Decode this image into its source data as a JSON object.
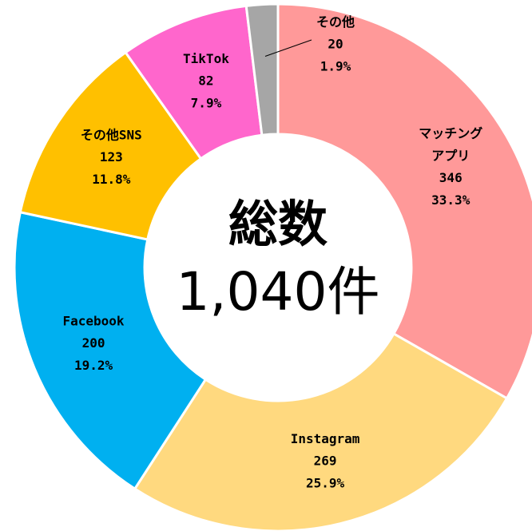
{
  "chart_data": {
    "type": "donut",
    "center_title": "総数",
    "center_total": "1,040件",
    "categories": [
      "マッチング\nアプリ",
      "Instagram",
      "Facebook",
      "その他SNS",
      "TikTok",
      "その他"
    ],
    "values": [
      346,
      269,
      200,
      123,
      82,
      20
    ],
    "percent_labels": [
      "33.3%",
      "25.9%",
      "19.2%",
      "11.8%",
      "7.9%",
      "1.9%"
    ],
    "colors": [
      "#FF9999",
      "#FFD97F",
      "#00B0F0",
      "#FFC000",
      "#FF66CC",
      "#A6A6A6"
    ]
  }
}
